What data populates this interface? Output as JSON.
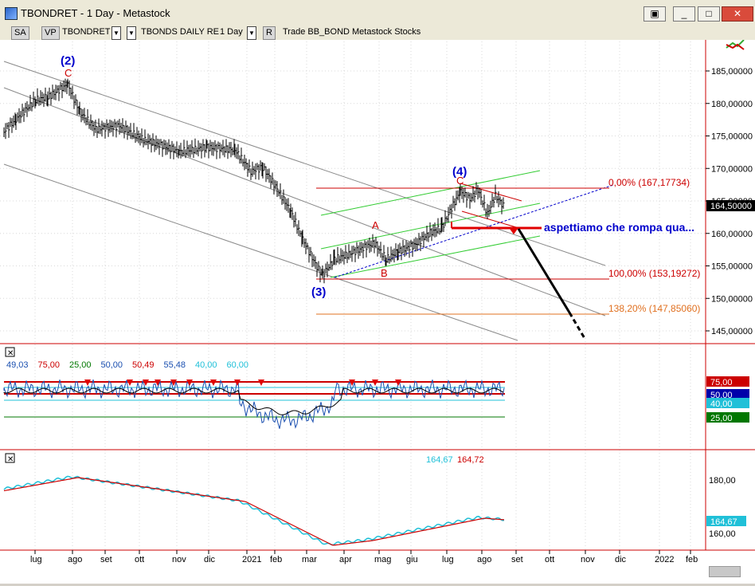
{
  "window": {
    "title": "TBONDRET - 1 Day - Metastock"
  },
  "toolbar": {
    "sa": "SA",
    "vp": "VP",
    "symbol": "TBONDRET",
    "name": "TBONDS DAILY RE",
    "period": "1 Day",
    "r": "R",
    "extra": "Trade  BB_BOND  Metastock  Stocks"
  },
  "price_axis": {
    "ticks": [
      "185,00000",
      "180,00000",
      "175,00000",
      "170,00000",
      "165,00000",
      "160,00000",
      "155,00000",
      "150,00000",
      "145,00000"
    ],
    "last_price": "164,50000"
  },
  "wave_labels": {
    "w2": "(2)",
    "w3": "(3)",
    "w4": "(4)",
    "c1": "C",
    "a": "A",
    "b": "B",
    "c2": "C"
  },
  "fib": {
    "f0": "0,00% (167,17734)",
    "f100": "100,00% (153,19272)",
    "f138": "138,20% (147,85060)"
  },
  "annotation": "aspettiamo che rompa qua...",
  "osc": {
    "legend": [
      "49,03",
      "75,00",
      "25,00",
      "50,00",
      "50,49",
      "55,48",
      "40,00",
      "60,00"
    ],
    "legend_colors": [
      "#1a4fb0",
      "#cc0000",
      "#007700",
      "#1a4fb0",
      "#cc0000",
      "#1a4fb0",
      "#20c0d8",
      "#20c0d8"
    ],
    "axis_labels": [
      "75,00",
      "50,00",
      "40,00",
      "25,00"
    ],
    "axis_colors": [
      "#cc0000",
      "#0000aa",
      "#20c0d8",
      "#007700"
    ]
  },
  "ma": {
    "legend": [
      "164,67",
      "164,72"
    ],
    "legend_colors": [
      "#20c0d8",
      "#cc0000"
    ],
    "axis": [
      "180,00",
      "164,67",
      "160,00"
    ]
  },
  "x_axis": {
    "labels": [
      "lug",
      "ago",
      "set",
      "ott",
      "nov",
      "dic",
      "2021",
      "feb",
      "mar",
      "apr",
      "mag",
      "giu",
      "lug",
      "ago",
      "set",
      "ott",
      "nov",
      "dic",
      "2022",
      "feb"
    ]
  },
  "colors": {
    "red": "#cc0000",
    "green": "#33cc33",
    "blue": "#0000cc",
    "orange": "#e07020",
    "cyan": "#20c0d8"
  }
}
